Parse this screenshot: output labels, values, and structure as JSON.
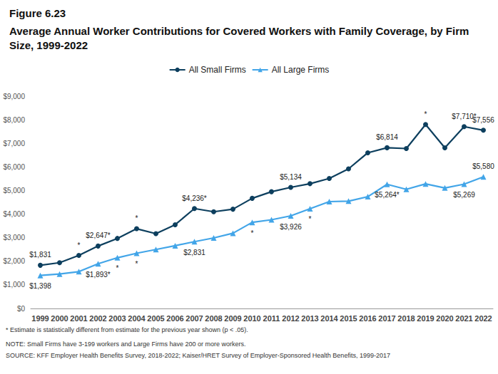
{
  "chart_data": {
    "type": "line",
    "title": "Figure 6.23",
    "subtitle": "Average Annual Worker Contributions for Covered Workers with Family Coverage, by Firm Size, 1999-2022",
    "categories": [
      "1999",
      "2000",
      "2001",
      "2002",
      "2003",
      "2004",
      "2005",
      "2006",
      "2007",
      "2008",
      "2009",
      "2010",
      "2011",
      "2012",
      "2013",
      "2014",
      "2015",
      "2016",
      "2017",
      "2018",
      "2019",
      "2020",
      "2021",
      "2022"
    ],
    "series": [
      {
        "name": "All Small Firms",
        "color": "#0d3f5e",
        "marker": "circle",
        "values": [
          1831,
          1940,
          2250,
          2647,
          2970,
          3380,
          3170,
          3550,
          4236,
          4100,
          4210,
          4670,
          4950,
          5134,
          5290,
          5510,
          5920,
          6600,
          6814,
          6780,
          7800,
          6810,
          7710,
          7556
        ],
        "value_labels": [
          "$1,831",
          null,
          "*",
          "$2,647*",
          null,
          "*",
          null,
          null,
          "$4,236*",
          null,
          null,
          null,
          null,
          "$5,134",
          null,
          null,
          null,
          null,
          "$6,814",
          null,
          "*",
          null,
          "$7,710*",
          "$7,556"
        ]
      },
      {
        "name": "All Large Firms",
        "color": "#42a5e8",
        "marker": "triangle",
        "values": [
          1398,
          1460,
          1560,
          1893,
          2150,
          2340,
          2500,
          2660,
          2831,
          2990,
          3190,
          3650,
          3760,
          3926,
          4230,
          4530,
          4550,
          4740,
          5264,
          5050,
          5280,
          5110,
          5269,
          5580
        ],
        "value_labels": [
          "$1,398",
          null,
          null,
          "$1,893*",
          "*",
          "*",
          null,
          null,
          "$2,831",
          null,
          null,
          "*",
          null,
          "$3,926",
          "*",
          null,
          null,
          null,
          "$5,264*",
          null,
          null,
          null,
          "$5,269",
          "$5,580"
        ]
      }
    ],
    "ylim": [
      0,
      9000
    ],
    "yticks": [
      {
        "value": 0,
        "label": "$0"
      },
      {
        "value": 1000,
        "label": "$1,000"
      },
      {
        "value": 2000,
        "label": "$2,000"
      },
      {
        "value": 3000,
        "label": "$3,000"
      },
      {
        "value": 4000,
        "label": "$4,000"
      },
      {
        "value": 5000,
        "label": "$5,000"
      },
      {
        "value": 6000,
        "label": "$6,000"
      },
      {
        "value": 7000,
        "label": "$7,000"
      },
      {
        "value": 8000,
        "label": "$8,000"
      },
      {
        "value": 9000,
        "label": "$9,000"
      }
    ],
    "grid": false,
    "legend": "top",
    "data_labels": true,
    "notes": [
      "* Estimate is statistically different from estimate for the previous year shown (p < .05).",
      "NOTE: Small Firms have 3-199 workers and Large Firms have 200 or more workers.",
      "SOURCE: KFF Employer Health Benefits Survey, 2018-2022; Kaiser/HRET Survey of Employer-Sponsored Health Benefits, 1999-2017"
    ]
  }
}
